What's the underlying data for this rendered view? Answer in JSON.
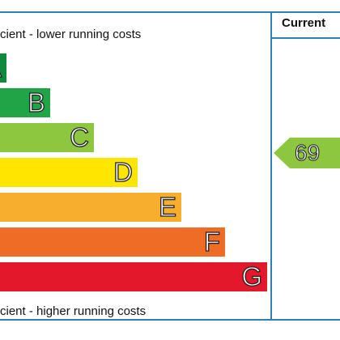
{
  "top_caption": "cient - lower running costs",
  "bottom_caption": "cient - higher running costs",
  "column_header": "Current",
  "chart_data": {
    "type": "bar",
    "categories": [
      "A",
      "B",
      "C",
      "D",
      "E",
      "F",
      "G"
    ],
    "colors": [
      "#0f8a3c",
      "#1fa547",
      "#8dc63f",
      "#ffe600",
      "#f7ae2d",
      "#ef6c27",
      "#e3182b"
    ],
    "current_rating": 69,
    "current_band": "C",
    "current_color": "#8dc63f"
  }
}
